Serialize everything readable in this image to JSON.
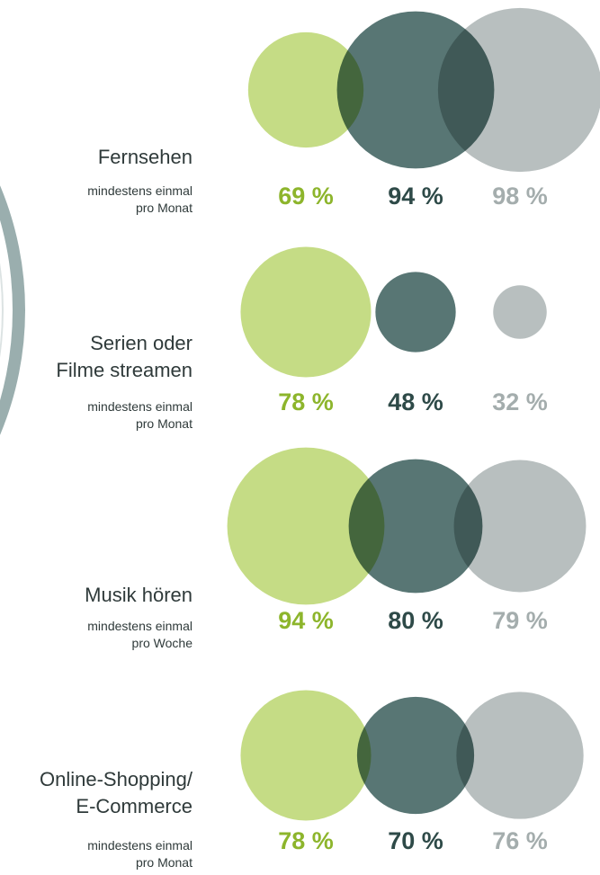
{
  "chart_data": {
    "type": "bubble",
    "categories": [
      "Fernsehen",
      "Serien oder\nFilme streamen",
      "Musik hören",
      "Online-Shopping/\nE-Commerce"
    ],
    "subtitles": [
      "mindestens einmal\npro Monat",
      "mindestens einmal\npro Monat",
      "mindestens einmal\npro Woche",
      "mindestens einmal\npro Monat"
    ],
    "series": [
      {
        "color": "#c5dc85",
        "label_color": "#8db52c",
        "values": [
          69,
          78,
          94,
          78
        ],
        "value_labels": [
          "69 %",
          "78 %",
          "94 %",
          "78 %"
        ]
      },
      {
        "color": "#587674",
        "label_color": "#2e4a48",
        "values": [
          94,
          48,
          80,
          70
        ],
        "value_labels": [
          "94 %",
          "48 %",
          "80 %",
          "70 %"
        ]
      },
      {
        "color": "#b8bfbf",
        "label_color": "#a4adad",
        "values": [
          98,
          32,
          79,
          76
        ],
        "value_labels": [
          "98 %",
          "32 %",
          "79 %",
          "76 %"
        ]
      }
    ]
  }
}
